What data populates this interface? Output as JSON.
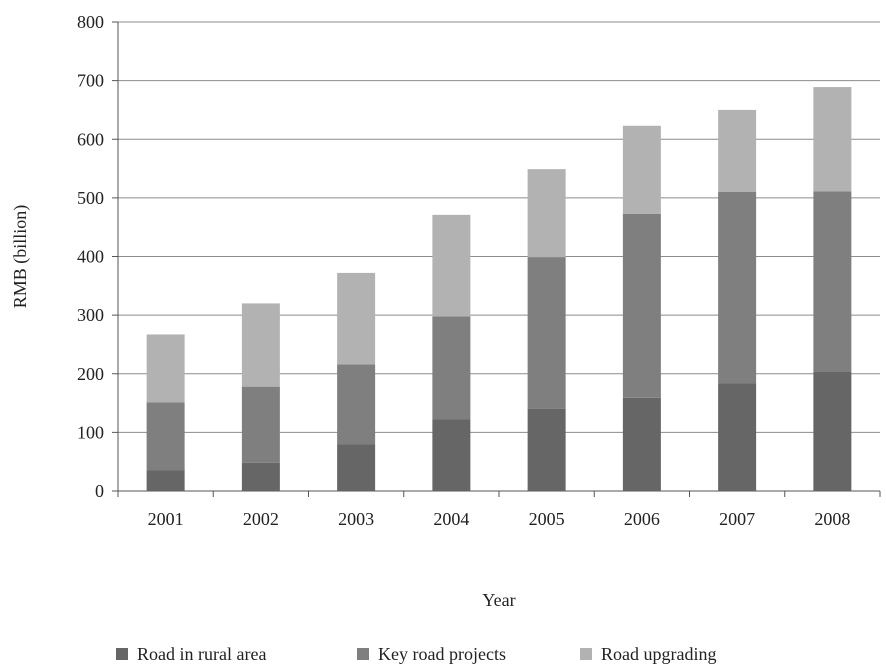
{
  "chart_data": {
    "type": "bar",
    "stacked": true,
    "title": "",
    "xlabel": "Year",
    "ylabel": "RMB (billion)",
    "categories": [
      "2001",
      "2002",
      "2003",
      "2004",
      "2005",
      "2006",
      "2007",
      "2008"
    ],
    "series": [
      {
        "name": "Road in rural area",
        "color": "#666666",
        "values": [
          35,
          48,
          80,
          122,
          140,
          159,
          184,
          203
        ]
      },
      {
        "name": "Key road projects",
        "color": "#7f7f7f",
        "values": [
          116,
          130,
          136,
          176,
          259,
          314,
          326,
          308
        ]
      },
      {
        "name": "Road upgrading",
        "color": "#b2b2b2",
        "values": [
          116,
          142,
          156,
          173,
          150,
          150,
          140,
          178
        ]
      }
    ],
    "ylim": [
      0,
      800
    ],
    "yticks": [
      0,
      100,
      200,
      300,
      400,
      500,
      600,
      700,
      800
    ],
    "grid": true,
    "legend_position": "bottom"
  }
}
